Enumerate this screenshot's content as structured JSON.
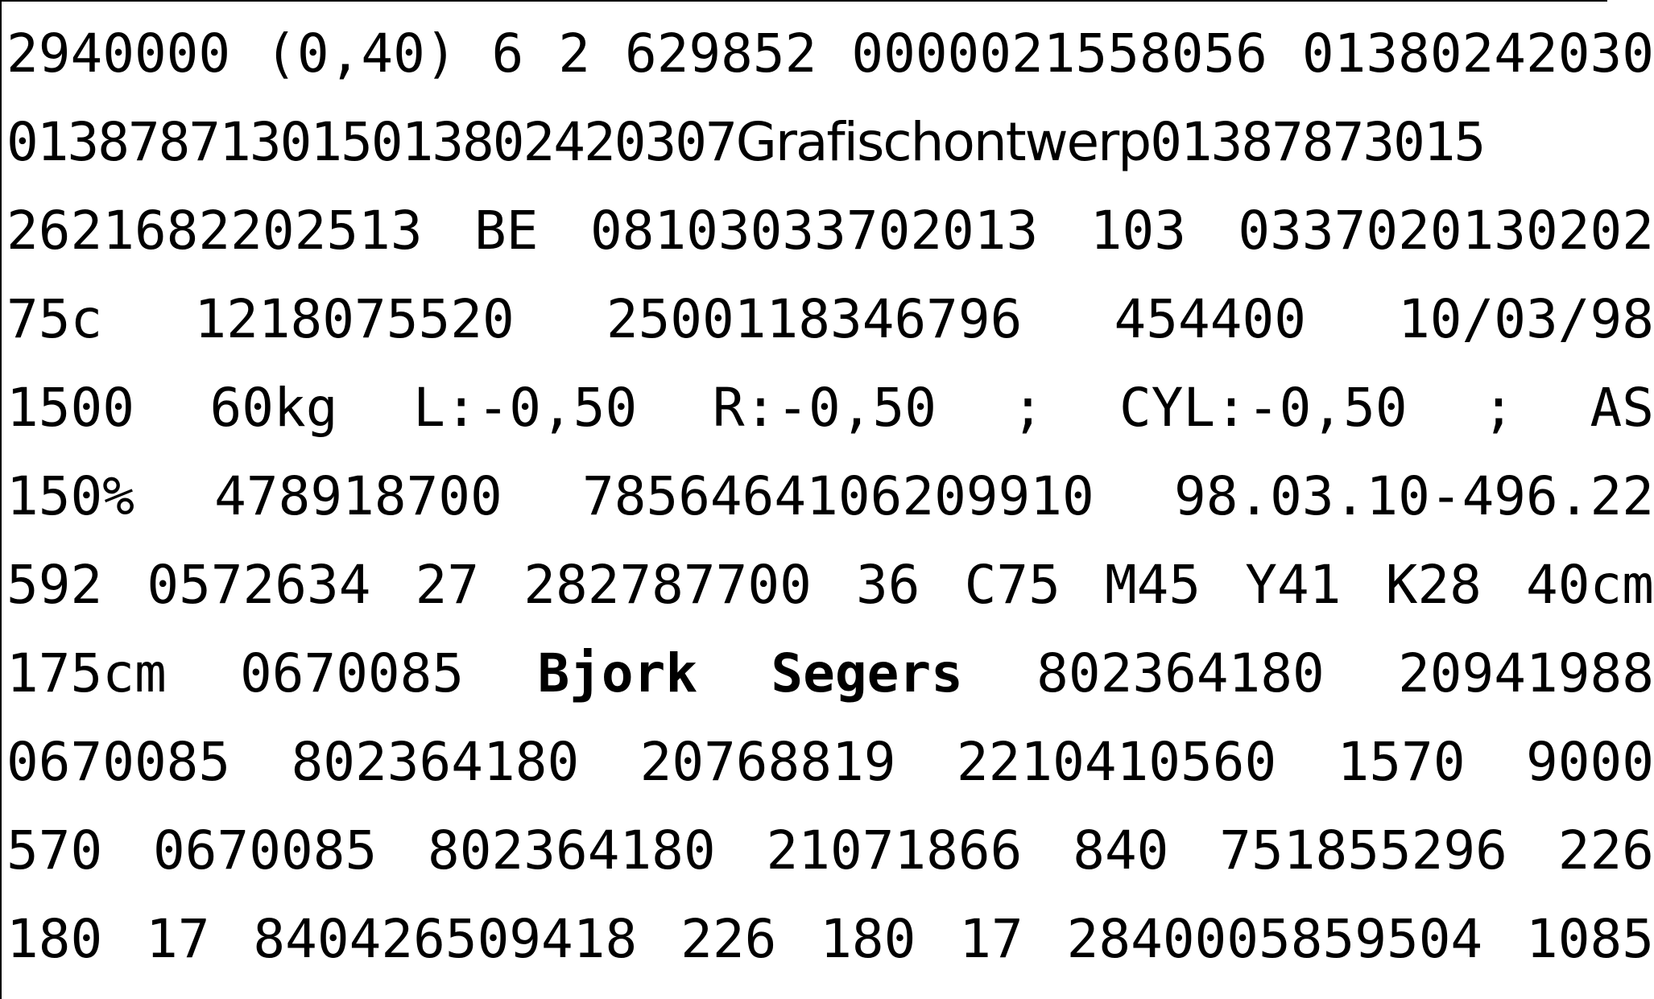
{
  "lines": [
    [
      "2940000",
      "(0,40)",
      "6",
      "2",
      "629852",
      "0000021558056",
      "01380242030"
    ],
    [
      "01387871301",
      "5",
      "0138024203",
      "07",
      "Grafischontwerp",
      "0138787301",
      "5"
    ],
    [
      "262168220251",
      "3",
      "BE",
      "0810303370201",
      "3",
      "103",
      "03370201302",
      "02"
    ],
    [
      "75c",
      "1218075520",
      "2500118346796",
      "454400",
      "10/03/98"
    ],
    [
      "1500",
      "60kg",
      "L:-0,50",
      "R:-0,50",
      ";",
      "CYL:-0,50",
      ";",
      "AS"
    ],
    [
      "150%",
      "478918700",
      "7856464106209910",
      "98.03.10-496.22"
    ],
    [
      "592",
      "0572634",
      "27",
      "282787700",
      "36",
      "C75",
      "M45",
      "Y41",
      "K28",
      "40cm"
    ],
    [
      "175cm",
      "0670085",
      "Bjork",
      "Segers",
      "802364180",
      "20941988"
    ],
    [
      "0670085",
      "802364180",
      "20768819",
      "2210410560",
      "1570",
      "9000"
    ],
    [
      "570",
      "0670085",
      "802364180",
      "21071866",
      "840",
      "751855296",
      "226"
    ],
    [
      "180",
      "17",
      "840426509418",
      "226",
      "180",
      "17",
      "2840005859504",
      "1085"
    ]
  ]
}
